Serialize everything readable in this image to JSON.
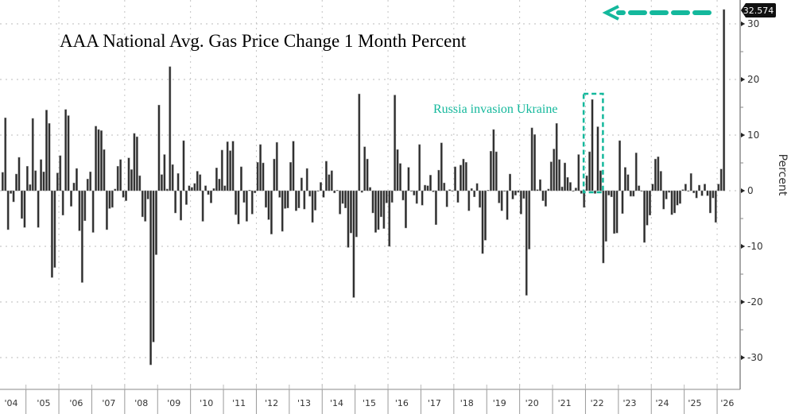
{
  "chart_data": {
    "type": "bar",
    "title": "AAA National Avg. Gas Price Change 1 Month Percent",
    "xlabel": "",
    "ylabel": "Percent",
    "ylim": [
      -33,
      34
    ],
    "yticks": [
      30,
      20,
      10,
      0,
      -10,
      -20,
      -30
    ],
    "ytick_labels": [
      "30",
      "20",
      "10",
      "0",
      "-10",
      "-20",
      "-30"
    ],
    "xtick_labels": [
      "'04",
      "'05",
      "'06",
      "'07",
      "'08",
      "'09",
      "'10",
      "'11",
      "'12",
      "'13",
      "'14",
      "'15",
      "'16",
      "'17",
      "'18",
      "'19",
      "'20",
      "'21",
      "'22",
      "'23",
      "'24",
      "'25",
      "'26"
    ],
    "y_axis_side": "right",
    "grid": true,
    "bar_color": "#2b2b2b",
    "last_value_label": "32.574",
    "annotation": {
      "text": "Russia invasion Ukraine",
      "color": "#14b89c",
      "highlight_period": [
        "2022-01",
        "2022-06"
      ]
    },
    "arrow_color": "#14b89c",
    "x": [
      "2004-04",
      "2004-05",
      "2004-06",
      "2004-07",
      "2004-08",
      "2004-09",
      "2004-10",
      "2004-11",
      "2004-12",
      "2005-01",
      "2005-02",
      "2005-03",
      "2005-04",
      "2005-05",
      "2005-06",
      "2005-07",
      "2005-08",
      "2005-09",
      "2005-10",
      "2005-11",
      "2005-12",
      "2006-01",
      "2006-02",
      "2006-03",
      "2006-04",
      "2006-05",
      "2006-06",
      "2006-07",
      "2006-08",
      "2006-09",
      "2006-10",
      "2006-11",
      "2006-12",
      "2007-01",
      "2007-02",
      "2007-03",
      "2007-04",
      "2007-05",
      "2007-06",
      "2007-07",
      "2007-08",
      "2007-09",
      "2007-10",
      "2007-11",
      "2007-12",
      "2008-01",
      "2008-02",
      "2008-03",
      "2008-04",
      "2008-05",
      "2008-06",
      "2008-07",
      "2008-08",
      "2008-09",
      "2008-10",
      "2008-11",
      "2008-12",
      "2009-01",
      "2009-02",
      "2009-03",
      "2009-04",
      "2009-05",
      "2009-06",
      "2009-07",
      "2009-08",
      "2009-09",
      "2009-10",
      "2009-11",
      "2009-12",
      "2010-01",
      "2010-02",
      "2010-03",
      "2010-04",
      "2010-05",
      "2010-06",
      "2010-07",
      "2010-08",
      "2010-09",
      "2010-10",
      "2010-11",
      "2010-12",
      "2011-01",
      "2011-02",
      "2011-03",
      "2011-04",
      "2011-05",
      "2011-06",
      "2011-07",
      "2011-08",
      "2011-09",
      "2011-10",
      "2011-11",
      "2011-12",
      "2012-01",
      "2012-02",
      "2012-03",
      "2012-04",
      "2012-05",
      "2012-06",
      "2012-07",
      "2012-08",
      "2012-09",
      "2012-10",
      "2012-11",
      "2012-12",
      "2013-01",
      "2013-02",
      "2013-03",
      "2013-04",
      "2013-05",
      "2013-06",
      "2013-07",
      "2013-08",
      "2013-09",
      "2013-10",
      "2013-11",
      "2013-12",
      "2014-01",
      "2014-02",
      "2014-03",
      "2014-04",
      "2014-05",
      "2014-06",
      "2014-07",
      "2014-08",
      "2014-09",
      "2014-10",
      "2014-11",
      "2014-12",
      "2015-01",
      "2015-02",
      "2015-03",
      "2015-04",
      "2015-05",
      "2015-06",
      "2015-07",
      "2015-08",
      "2015-09",
      "2015-10",
      "2015-11",
      "2015-12",
      "2016-01",
      "2016-02",
      "2016-03",
      "2016-04",
      "2016-05",
      "2016-06",
      "2016-07",
      "2016-08",
      "2016-09",
      "2016-10",
      "2016-11",
      "2016-12",
      "2017-01",
      "2017-02",
      "2017-03",
      "2017-04",
      "2017-05",
      "2017-06",
      "2017-07",
      "2017-08",
      "2017-09",
      "2017-10",
      "2017-11",
      "2017-12",
      "2018-01",
      "2018-02",
      "2018-03",
      "2018-04",
      "2018-05",
      "2018-06",
      "2018-07",
      "2018-08",
      "2018-09",
      "2018-10",
      "2018-11",
      "2018-12",
      "2019-01",
      "2019-02",
      "2019-03",
      "2019-04",
      "2019-05",
      "2019-06",
      "2019-07",
      "2019-08",
      "2019-09",
      "2019-10",
      "2019-11",
      "2019-12",
      "2020-01",
      "2020-02",
      "2020-03",
      "2020-04",
      "2020-05",
      "2020-06",
      "2020-07",
      "2020-08",
      "2020-09",
      "2020-10",
      "2020-11",
      "2020-12",
      "2021-01",
      "2021-02",
      "2021-03",
      "2021-04",
      "2021-05",
      "2021-06",
      "2021-07",
      "2021-08",
      "2021-09",
      "2021-10",
      "2021-11",
      "2021-12",
      "2022-01",
      "2022-02",
      "2022-03",
      "2022-04",
      "2022-05",
      "2022-06",
      "2022-07",
      "2022-08",
      "2022-09",
      "2022-10",
      "2022-11",
      "2022-12",
      "2023-01",
      "2023-02",
      "2023-03",
      "2023-04",
      "2023-05",
      "2023-06",
      "2023-07",
      "2023-08",
      "2023-09",
      "2023-10",
      "2023-11",
      "2023-12",
      "2024-01",
      "2024-02",
      "2024-03",
      "2024-04",
      "2024-05",
      "2024-06",
      "2024-07",
      "2024-08",
      "2024-09",
      "2024-10",
      "2024-11",
      "2024-12",
      "2025-01",
      "2025-02",
      "2025-03",
      "2025-04",
      "2025-05",
      "2025-06",
      "2025-07",
      "2025-08",
      "2025-09",
      "2025-10",
      "2025-11",
      "2025-12",
      "2026-01",
      "2026-02",
      "2026-03"
    ],
    "values": [
      3.3,
      13.1,
      -7.0,
      -0.5,
      -2.0,
      3.0,
      6.0,
      -5.0,
      -6.6,
      4.4,
      1.1,
      13.0,
      3.6,
      -6.6,
      5.6,
      3.4,
      14.5,
      12.1,
      -15.6,
      -13.8,
      3.2,
      6.3,
      -4.4,
      14.6,
      13.5,
      -2.8,
      1.4,
      4.0,
      -7.2,
      -16.5,
      -5.4,
      2.1,
      3.4,
      -7.5,
      11.6,
      11.0,
      10.8,
      7.4,
      -7.0,
      -3.2,
      -3.0,
      0.3,
      4.4,
      5.6,
      -1.2,
      -1.8,
      5.9,
      3.8,
      10.3,
      9.7,
      2.7,
      -4.7,
      -5.5,
      -1.5,
      -31.3,
      -27.2,
      -11.5,
      15.4,
      2.9,
      6.5,
      0.3,
      22.3,
      4.7,
      -4.0,
      3.1,
      -5.3,
      9.0,
      -2.5,
      0.9,
      0.6,
      1.3,
      3.5,
      2.9,
      -5.5,
      0.9,
      -0.7,
      -2.2,
      0.4,
      4.1,
      2.1,
      7.3,
      0.9,
      8.8,
      7.2,
      8.9,
      -4.3,
      -6.0,
      4.3,
      -2.1,
      -5.5,
      0.1,
      -4.2,
      -0.4,
      5.1,
      8.3,
      5.0,
      -3.0,
      -5.2,
      -7.8,
      5.7,
      8.7,
      -1.2,
      -7.3,
      -3.2,
      -3.1,
      5.1,
      8.9,
      -3.6,
      -3.1,
      2.3,
      -3.3,
      4.0,
      -1.0,
      -5.7,
      -3.5,
      0.0,
      1.5,
      -1.2,
      5.3,
      2.9,
      3.6,
      -0.4,
      0.1,
      -4.2,
      -2.3,
      -3.1,
      -10.2,
      -7.6,
      -19.2,
      -8.3,
      17.4,
      -0.3,
      7.9,
      5.7,
      0.6,
      -4.0,
      -7.5,
      -7.0,
      -4.7,
      -6.8,
      -2.2,
      -10.0,
      -2.1,
      17.2,
      7.4,
      4.9,
      -1.7,
      -6.7,
      4.2,
      -0.1,
      -0.8,
      -2.3,
      8.3,
      -2.6,
      1.0,
      0.9,
      2.8,
      -0.2,
      -6.1,
      3.7,
      8.6,
      1.4,
      -2.9,
      0.2,
      -0.1,
      4.3,
      -2.1,
      4.6,
      5.7,
      5.1,
      -3.6,
      0.4,
      -1.1,
      1.3,
      -3.0,
      -11.3,
      -8.9,
      0.1,
      7.1,
      11.0,
      7.0,
      -2.2,
      -3.6,
      -0.1,
      -5.2,
      3.0,
      -1.5,
      -0.8,
      -0.3,
      -4.2,
      -1.4,
      -18.8,
      -10.5,
      11.3,
      10.1,
      0.2,
      2.0,
      -1.8,
      -2.8,
      0.3,
      5.2,
      7.5,
      12.1,
      5.6,
      0.7,
      5.0,
      2.4,
      1.5,
      0.0,
      0.5,
      6.5,
      -0.5,
      -3.0,
      2.7,
      7.0,
      16.4,
      -0.5,
      11.5,
      3.6,
      -13.0,
      -9.1,
      -0.8,
      -1.1,
      -7.7,
      -7.6,
      9.0,
      -4.1,
      4.2,
      2.9,
      -1.0,
      -1.0,
      6.8,
      0.9,
      -0.1,
      -9.3,
      -6.2,
      -4.4,
      1.2,
      5.7,
      6.1,
      3.5,
      -3.3,
      -1.5,
      -0.3,
      -4.3,
      -4.0,
      -2.6,
      -2.3,
      0.2,
      1.2,
      -0.1,
      3.1,
      -0.4,
      -1.3,
      1.0,
      -0.9,
      1.2,
      -0.9,
      -4.0,
      -1.3,
      -5.7,
      1.2,
      3.9,
      32.574
    ]
  }
}
